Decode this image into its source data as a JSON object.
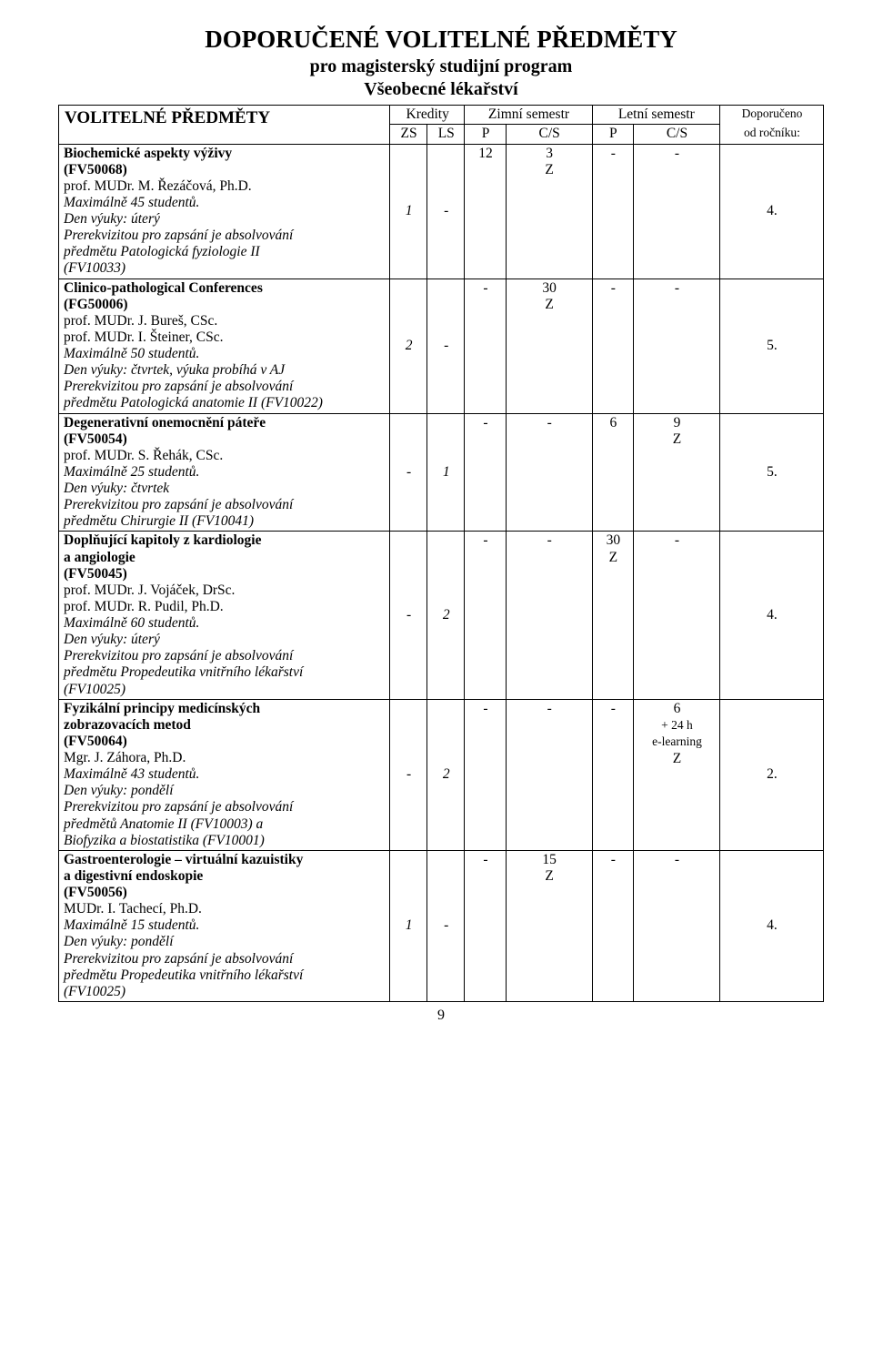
{
  "title": "DOPORUČENÉ VOLITELNÉ PŘEDMĚTY",
  "subtitle1": "pro magisterský studijní program",
  "subtitle2": "Všeobecné lékařství",
  "section_head": "VOLITELNÉ PŘEDMĚTY",
  "header": {
    "kredity": "Kredity",
    "zimni": "Zimní semestr",
    "letni": "Letní semestr",
    "doporuceno": "Doporučeno",
    "od_rocniku": "od ročníku:",
    "zs": "ZS",
    "ls": "LS",
    "p": "P",
    "cs": "C/S"
  },
  "rows": [
    {
      "name": "Biochemické aspekty výživy",
      "code": "(FV50068)",
      "teacher": "prof. MUDr. M. Řezáčová, Ph.D.",
      "max": "Maximálně 45 studentů.",
      "day": "Den výuky: úterý",
      "prereq_lines": [
        "Prerekvizitou pro zapsání je absolvování",
        "předmětu Patologická fyziologie II",
        "(FV10033)"
      ],
      "zs": "1",
      "ls": "-",
      "p1": "12",
      "cs1_a": "3",
      "cs1_b": "Z",
      "p2": "-",
      "cs2_a": "-",
      "cs2_b": "",
      "rec": "4."
    },
    {
      "name": "Clinico-pathological Conferences",
      "code": "(FG50006)",
      "teacher": "prof. MUDr. J. Bureš, CSc.",
      "teacher2": "prof. MUDr. I. Šteiner, CSc.",
      "max": "Maximálně 50 studentů.",
      "day": "Den výuky: čtvrtek, výuka probíhá v AJ",
      "prereq_lines": [
        "Prerekvizitou pro zapsání je absolvování",
        "předmětu Patologická anatomie II (FV10022)"
      ],
      "zs": "2",
      "ls": "-",
      "p1": "-",
      "cs1_a": "30",
      "cs1_b": "Z",
      "p2": "-",
      "cs2_a": "-",
      "cs2_b": "",
      "rec": "5."
    },
    {
      "name": "Degenerativní onemocnění páteře",
      "code": "(FV50054)",
      "teacher": "prof. MUDr. S. Řehák, CSc.",
      "max": "Maximálně 25 studentů.",
      "day": "Den výuky: čtvrtek",
      "prereq_lines": [
        "Prerekvizitou pro zapsání je absolvování",
        "předmětu Chirurgie II (FV10041)"
      ],
      "zs": "-",
      "ls": "1",
      "p1": "-",
      "cs1_a": "-",
      "cs1_b": "",
      "p2": "6",
      "cs2_a": "9",
      "cs2_b": "Z",
      "rec": "5."
    },
    {
      "name_line1": "Doplňující kapitoly z kardiologie",
      "name_line2": "a angiologie",
      "code": "(FV50045)",
      "teacher": "prof. MUDr. J. Vojáček, DrSc.",
      "teacher2": "prof. MUDr. R. Pudil, Ph.D.",
      "max": "Maximálně 60 studentů.",
      "day": "Den výuky: úterý",
      "prereq_lines": [
        "Prerekvizitou pro zapsání je absolvování",
        "předmětu Propedeutika vnitřního lékařství",
        "(FV10025)"
      ],
      "zs": "-",
      "ls": "2",
      "p1": "-",
      "cs1_a": "-",
      "cs1_b": "",
      "p2": "30",
      "cs2_a": "-",
      "cs2_b": "",
      "p2_b": "Z",
      "rec": "4."
    },
    {
      "name_line1": "Fyzikální principy medicínských",
      "name_line2": "zobrazovacích metod",
      "code": "(FV50064)",
      "teacher": "Mgr. J. Záhora, Ph.D.",
      "max": "Maximálně 43 studentů.",
      "day": "Den výuky: pondělí",
      "prereq_lines": [
        "Prerekvizitou pro zapsání je absolvování",
        "předmětů Anatomie II (FV10003) a",
        "Biofyzika a biostatistika (FV10001)"
      ],
      "zs": "-",
      "ls": "2",
      "p1": "-",
      "cs1_a": "-",
      "cs1_b": "",
      "p2": "-",
      "cs2_a": "6",
      "cs2_x1": "+ 24 h",
      "cs2_x2": "e-learning",
      "cs2_b": "Z",
      "rec": "2."
    },
    {
      "name_line1": "Gastroenterologie – virtuální kazuistiky",
      "name_line2": "a digestivní endoskopie",
      "code": "(FV50056)",
      "teacher": "MUDr. I. Tachecí, Ph.D.",
      "max": "Maximálně 15 studentů.",
      "day": "Den výuky: pondělí",
      "prereq_lines": [
        "Prerekvizitou pro zapsání je absolvování",
        "předmětu Propedeutika vnitřního lékařství",
        "(FV10025)"
      ],
      "zs": "1",
      "ls": "-",
      "p1": "-",
      "cs1_a": "15",
      "cs1_b": "Z",
      "p2": "-",
      "cs2_a": "-",
      "cs2_b": "",
      "rec": "4."
    }
  ],
  "page_number": "9"
}
